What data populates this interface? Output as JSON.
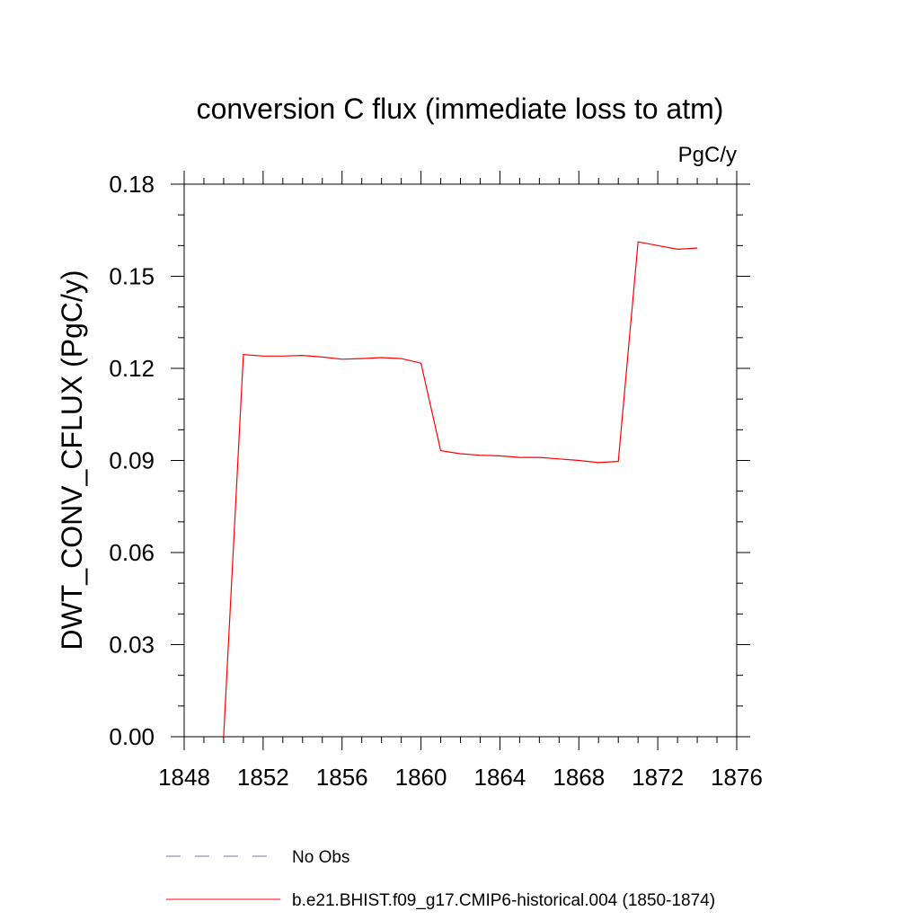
{
  "chart_data": {
    "type": "line",
    "title": "conversion C flux (immediate loss to atm)",
    "units_label": "PgC/y",
    "xlabel": "",
    "ylabel": "DWT_CONV_CFLUX  (PgC/y)",
    "xlim": [
      1848,
      1876
    ],
    "ylim": [
      0.0,
      0.18
    ],
    "x_ticks": [
      "1848",
      "1852",
      "1856",
      "1860",
      "1864",
      "1868",
      "1872",
      "1876"
    ],
    "y_ticks": [
      "0.00",
      "0.03",
      "0.06",
      "0.09",
      "0.12",
      "0.15",
      "0.18"
    ],
    "grid": false,
    "legend": {
      "placement": "bottom",
      "entries": [
        {
          "label": "No Obs",
          "color": "#7b6fb8",
          "style": "dashed"
        },
        {
          "label": "b.e21.BHIST.f09_g17.CMIP6-historical.004 (1850-1874)",
          "color": "#ff0000",
          "style": "solid"
        }
      ]
    },
    "series": [
      {
        "name": "b.e21.BHIST.f09_g17.CMIP6-historical.004 (1850-1874)",
        "color": "#ff0000",
        "x": [
          1850,
          1851,
          1852,
          1853,
          1854,
          1855,
          1856,
          1857,
          1858,
          1859,
          1860,
          1861,
          1862,
          1863,
          1864,
          1865,
          1866,
          1867,
          1868,
          1869,
          1870,
          1871,
          1872,
          1873,
          1874
        ],
        "y": [
          0.0,
          0.1245,
          0.124,
          0.124,
          0.1242,
          0.1237,
          0.123,
          0.1232,
          0.1235,
          0.1232,
          0.1217,
          0.0932,
          0.0922,
          0.0917,
          0.0915,
          0.091,
          0.091,
          0.0905,
          0.09,
          0.0893,
          0.0897,
          0.1612,
          0.16,
          0.1588,
          0.1592
        ]
      }
    ]
  }
}
